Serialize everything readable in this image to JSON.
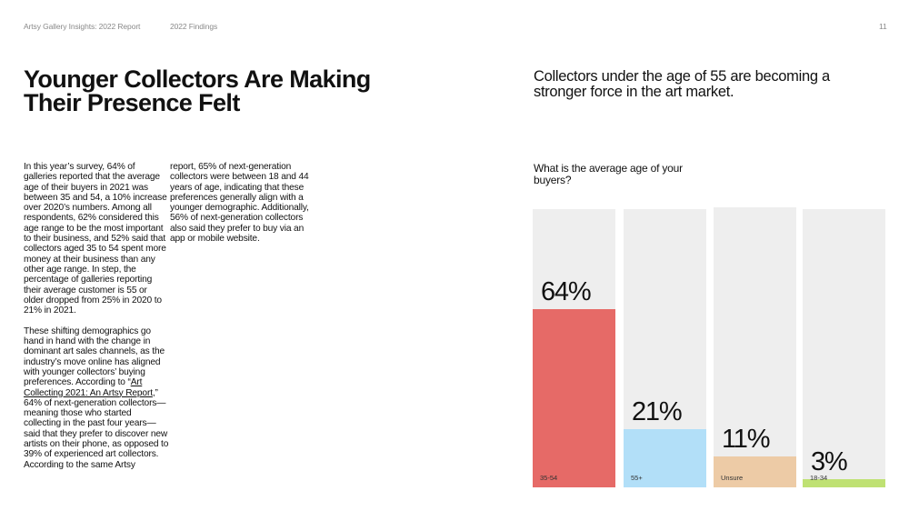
{
  "header": {
    "report_title": "Artsy Gallery Insights: 2022 Report",
    "section": "2022 Findings",
    "page_number": "11"
  },
  "article": {
    "title": "Younger Collectors Are Making Their Presence Felt",
    "col1_p1": "In this year’s survey, 64% of galleries reported that the average age of their buyers in 2021 was between 35 and 54, a 10% increase over 2020’s numbers. Among all respondents, 62% considered this age range to be the most important to their business, and 52% said that collectors aged 35 to 54 spent more money at their business than any other age range. In step, the percentage of galleries reporting their average customer is 55 or older dropped from 25% in 2020 to 21% in 2021.",
    "col1_p2_before": "These shifting demographics go hand in hand with the change in dominant art sales channels, as the industry’s move online has aligned with younger collectors’ buying preferences. According to “",
    "col1_p2_link": "Art Collecting 2021: An Artsy Report",
    "col1_p2_after": ",” 64% of next-generation collectors—meaning those who started collecting in the past four years—said that they prefer to discover new artists on their phone, as opposed to 39% of experienced art collectors. According to the same Artsy",
    "col2_p1": "report, 65% of next-generation collectors were between 18 and 44 years of age, indicating that these preferences generally align with a younger demographic. Additionally, 56% of next-generation collectors also said they prefer to buy via an app or mobile website."
  },
  "chart_section": {
    "subhead": "Collectors under the age of 55 are becoming a stronger force in the art market.",
    "question": "What is the average age of your buyers?"
  },
  "chart_data": {
    "type": "bar",
    "title": "What is the average age of your buyers?",
    "categories": [
      "35-54",
      "55+",
      "Unsure",
      "18-34"
    ],
    "values": [
      64,
      21,
      11,
      3
    ],
    "value_labels": [
      "64%",
      "21%",
      "11%",
      "3%"
    ],
    "colors": [
      "#e66a67",
      "#b2dff8",
      "#edcba6",
      "#bfe173"
    ],
    "background_color": "#eeeeee",
    "xlabel": "",
    "ylabel": "",
    "ylim": [
      0,
      100
    ],
    "grid": false,
    "legend": "none"
  }
}
